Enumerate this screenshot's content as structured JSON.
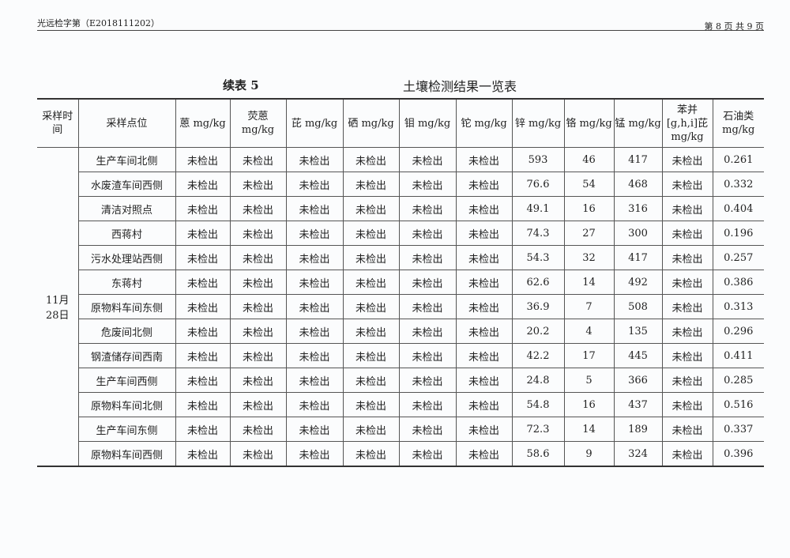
{
  "header": {
    "report_no": "光远检字第（E2018111202）",
    "page": "第 8 页 共 9 页"
  },
  "table_label": "续表 5",
  "table_title": "土壤检测结果一览表",
  "columns": [
    "采样时间",
    "采样点位",
    "蒽 mg/kg",
    "荧蒽 mg/kg",
    "芘 mg/kg",
    "硒 mg/kg",
    "钼 mg/kg",
    "铊 mg/kg",
    "锌 mg/kg",
    "铬 mg/kg",
    "锰 mg/kg",
    "苯并[g,h,i]芘 mg/kg",
    "石油类 mg/kg"
  ],
  "sampling_time": "11月 28日",
  "rows": [
    [
      "生产车间北侧",
      "未检出",
      "未检出",
      "未检出",
      "未检出",
      "未检出",
      "未检出",
      "593",
      "46",
      "417",
      "未检出",
      "0.261"
    ],
    [
      "水废渣车间西侧",
      "未检出",
      "未检出",
      "未检出",
      "未检出",
      "未检出",
      "未检出",
      "76.6",
      "54",
      "468",
      "未检出",
      "0.332"
    ],
    [
      "清洁对照点",
      "未检出",
      "未检出",
      "未检出",
      "未检出",
      "未检出",
      "未检出",
      "49.1",
      "16",
      "316",
      "未检出",
      "0.404"
    ],
    [
      "西蒋村",
      "未检出",
      "未检出",
      "未检出",
      "未检出",
      "未检出",
      "未检出",
      "74.3",
      "27",
      "300",
      "未检出",
      "0.196"
    ],
    [
      "污水处理站西侧",
      "未检出",
      "未检出",
      "未检出",
      "未检出",
      "未检出",
      "未检出",
      "54.3",
      "32",
      "417",
      "未检出",
      "0.257"
    ],
    [
      "东蒋村",
      "未检出",
      "未检出",
      "未检出",
      "未检出",
      "未检出",
      "未检出",
      "62.6",
      "14",
      "492",
      "未检出",
      "0.386"
    ],
    [
      "原物料车间东侧",
      "未检出",
      "未检出",
      "未检出",
      "未检出",
      "未检出",
      "未检出",
      "36.9",
      "7",
      "508",
      "未检出",
      "0.313"
    ],
    [
      "危废间北侧",
      "未检出",
      "未检出",
      "未检出",
      "未检出",
      "未检出",
      "未检出",
      "20.2",
      "4",
      "135",
      "未检出",
      "0.296"
    ],
    [
      "钢渣储存间西南",
      "未检出",
      "未检出",
      "未检出",
      "未检出",
      "未检出",
      "未检出",
      "42.2",
      "17",
      "445",
      "未检出",
      "0.411"
    ],
    [
      "生产车间西侧",
      "未检出",
      "未检出",
      "未检出",
      "未检出",
      "未检出",
      "未检出",
      "24.8",
      "5",
      "366",
      "未检出",
      "0.285"
    ],
    [
      "原物料车间北侧",
      "未检出",
      "未检出",
      "未检出",
      "未检出",
      "未检出",
      "未检出",
      "54.8",
      "16",
      "437",
      "未检出",
      "0.516"
    ],
    [
      "生产车间东侧",
      "未检出",
      "未检出",
      "未检出",
      "未检出",
      "未检出",
      "未检出",
      "72.3",
      "14",
      "189",
      "未检出",
      "0.337"
    ],
    [
      "原物料车间西侧",
      "未检出",
      "未检出",
      "未检出",
      "未检出",
      "未检出",
      "未检出",
      "58.6",
      "9",
      "324",
      "未检出",
      "0.396"
    ]
  ]
}
